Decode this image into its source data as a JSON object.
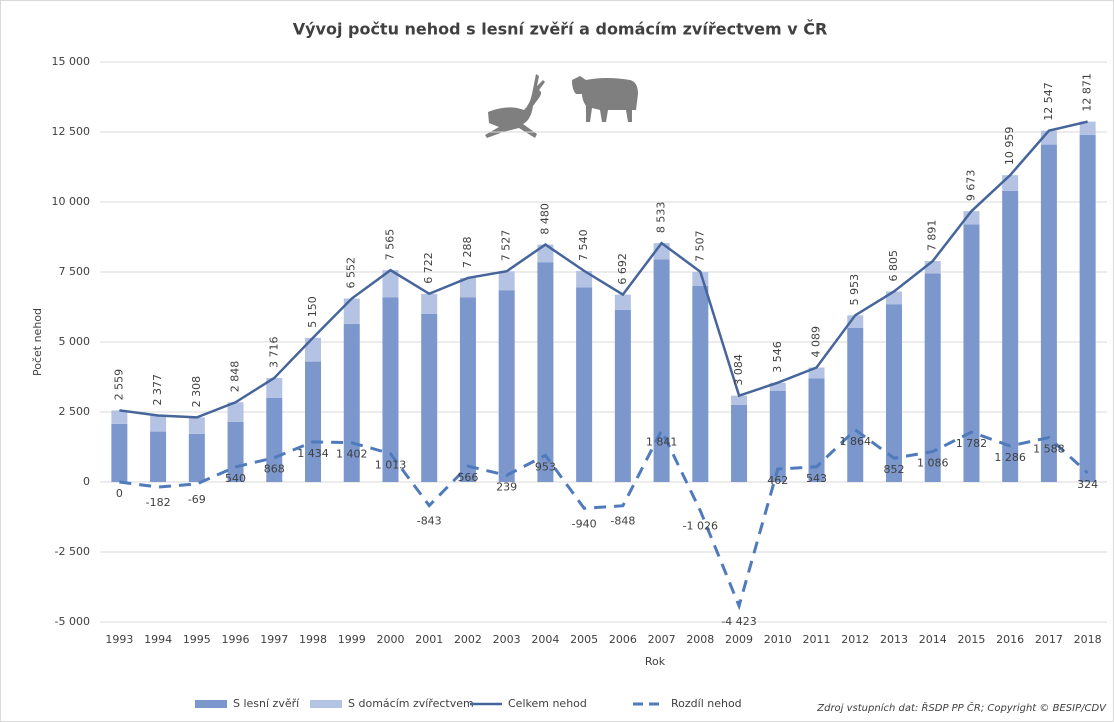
{
  "chart_data": {
    "type": "bar",
    "title": "Vývoj počtu nehod s lesní zvěří a domácím zvířectvem v ČR",
    "xlabel": "Rok",
    "ylabel": "Počet nehod",
    "source": "Zdroj vstupních dat: ŘSDP PP ČR; Copyright © BESIP/CDV",
    "stacked": true,
    "grid": true,
    "legend": "bottom",
    "categories": [
      "1993",
      "1994",
      "1995",
      "1996",
      "1997",
      "1998",
      "1999",
      "2000",
      "2001",
      "2002",
      "2003",
      "2004",
      "2005",
      "2006",
      "2007",
      "2008",
      "2009",
      "2010",
      "2011",
      "2012",
      "2013",
      "2014",
      "2015",
      "2016",
      "2017",
      "2018"
    ],
    "ylim": [
      -5000,
      15000
    ],
    "yticks": [
      {
        "value": -5000,
        "label": "-5 000"
      },
      {
        "value": -2500,
        "label": "-2 500"
      },
      0,
      {
        "value": 2500,
        "label": "2 500"
      },
      {
        "value": 5000,
        "label": "5 000"
      },
      {
        "value": 7500,
        "label": "7 500"
      },
      {
        "value": 10000,
        "label": "10 000"
      },
      {
        "value": 12500,
        "label": "12 500"
      },
      {
        "value": 15000,
        "label": "15 000"
      }
    ],
    "series": [
      {
        "name": "S lesní zvěří",
        "type": "bar",
        "color": "#7b97cc",
        "values": [
          2080,
          1800,
          1720,
          2150,
          3000,
          4300,
          5650,
          6600,
          6000,
          6600,
          6850,
          7850,
          6950,
          6150,
          7950,
          7000,
          2750,
          3250,
          3700,
          5500,
          6350,
          7450,
          9200,
          10400,
          12050,
          12400
        ]
      },
      {
        "name": "S domácím zvířectvem",
        "type": "bar",
        "color": "#b4c3e3",
        "values": [
          479,
          577,
          588,
          698,
          716,
          850,
          902,
          965,
          722,
          688,
          677,
          630,
          590,
          542,
          583,
          507,
          334,
          296,
          389,
          453,
          455,
          441,
          473,
          559,
          497,
          471
        ]
      },
      {
        "name": "Celkem nehod",
        "type": "line",
        "color": "#46659b",
        "values": [
          2559,
          2377,
          2308,
          2848,
          3716,
          5150,
          6552,
          7565,
          6722,
          7288,
          7527,
          8480,
          7540,
          6692,
          8533,
          7507,
          3084,
          3546,
          4089,
          5953,
          6805,
          7891,
          9673,
          10959,
          12547,
          12871
        ],
        "value_labels": [
          "2 559",
          "2 377",
          "2 308",
          "2 848",
          "3 716",
          "5 150",
          "6 552",
          "7 565",
          "6 722",
          "7 288",
          "7 527",
          "8 480",
          "7 540",
          "6 692",
          "8 533",
          "7 507",
          "3 084",
          "3 546",
          "4 089",
          "5 953",
          "6 805",
          "7 891",
          "9 673",
          "10 959",
          "12 547",
          "12 871"
        ]
      },
      {
        "name": "Rozdíl nehod",
        "type": "line",
        "dashed": true,
        "color": "#4f7bbd",
        "values": [
          0,
          -182,
          -69,
          540,
          868,
          1434,
          1402,
          1013,
          -843,
          566,
          239,
          953,
          -940,
          -848,
          1841,
          -1026,
          -4423,
          462,
          543,
          1864,
          852,
          1086,
          1782,
          1286,
          1588,
          324
        ],
        "value_labels": [
          "0",
          "-182",
          "-69",
          "540",
          "868",
          "1 434",
          "1 402",
          "1 013",
          "-843",
          "566",
          "239",
          "953",
          "-940",
          "-848",
          "1 841",
          "-1 026",
          "-4 423",
          "462",
          "543",
          "1 864",
          "852",
          "1 086",
          "1 782",
          "1 286",
          "1 588",
          "324"
        ]
      }
    ]
  }
}
